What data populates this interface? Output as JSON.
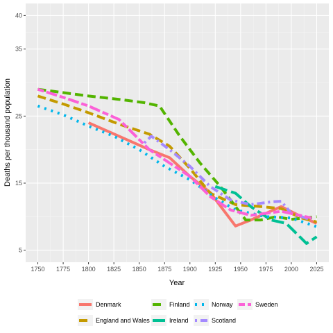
{
  "chart_data": {
    "type": "line",
    "title": "",
    "xlabel": "Year",
    "ylabel": "Deaths per thousand population",
    "xlim": [
      1738,
      2037
    ],
    "ylim": [
      3.2,
      41.8
    ],
    "x_ticks": [
      1750,
      1775,
      1800,
      1825,
      1850,
      1875,
      1900,
      1925,
      1950,
      1975,
      2000,
      2025
    ],
    "y_ticks": [
      5,
      15,
      25,
      35,
      40
    ],
    "grid": true,
    "legend_position": "bottom",
    "series": [
      {
        "name": "Denmark",
        "color": "#F8766D",
        "dash": "solid",
        "points": [
          [
            1800,
            24.0
          ],
          [
            1830,
            22.0
          ],
          [
            1860,
            20.0
          ],
          [
            1880,
            18.8
          ],
          [
            1900,
            16.0
          ],
          [
            1920,
            13.6
          ],
          [
            1945,
            8.6
          ],
          [
            1960,
            9.5
          ],
          [
            1990,
            11.5
          ],
          [
            2010,
            10.0
          ],
          [
            2025,
            9.0
          ]
        ]
      },
      {
        "name": "England and Wales",
        "color": "#C49A00",
        "dash": "dashed",
        "points": [
          [
            1750,
            28.0
          ],
          [
            1775,
            26.8
          ],
          [
            1800,
            25.5
          ],
          [
            1830,
            23.8
          ],
          [
            1860,
            22.3
          ],
          [
            1880,
            20.5
          ],
          [
            1900,
            17.2
          ],
          [
            1920,
            13.5
          ],
          [
            1945,
            11.8
          ],
          [
            1970,
            11.5
          ],
          [
            1990,
            11.2
          ],
          [
            2010,
            9.8
          ],
          [
            2025,
            9.2
          ]
        ]
      },
      {
        "name": "Finland",
        "color": "#53B400",
        "dash": "dashed",
        "points": [
          [
            1750,
            29.0
          ],
          [
            1775,
            28.5
          ],
          [
            1800,
            28.0
          ],
          [
            1830,
            27.5
          ],
          [
            1855,
            27.0
          ],
          [
            1870,
            26.5
          ],
          [
            1890,
            22.0
          ],
          [
            1910,
            18.0
          ],
          [
            1930,
            14.5
          ],
          [
            1945,
            11.5
          ],
          [
            1955,
            9.5
          ],
          [
            1970,
            9.5
          ],
          [
            1985,
            10.0
          ],
          [
            2000,
            9.6
          ],
          [
            2025,
            10.0
          ]
        ]
      },
      {
        "name": "Ireland",
        "color": "#00C094",
        "dash": "longdash",
        "points": [
          [
            1925,
            14.5
          ],
          [
            1945,
            13.5
          ],
          [
            1960,
            11.5
          ],
          [
            1980,
            9.5
          ],
          [
            1995,
            9.0
          ],
          [
            2005,
            7.5
          ],
          [
            2015,
            6.0
          ],
          [
            2025,
            7.0
          ]
        ]
      },
      {
        "name": "Norway",
        "color": "#00B6EB",
        "dash": "dotted",
        "points": [
          [
            1750,
            26.5
          ],
          [
            1775,
            25.2
          ],
          [
            1800,
            23.5
          ],
          [
            1825,
            22.0
          ],
          [
            1850,
            20.0
          ],
          [
            1875,
            17.5
          ],
          [
            1900,
            15.5
          ],
          [
            1925,
            12.8
          ],
          [
            1945,
            11.0
          ],
          [
            1975,
            10.0
          ],
          [
            2000,
            9.8
          ],
          [
            2025,
            8.5
          ]
        ]
      },
      {
        "name": "Scotland",
        "color": "#A58AFF",
        "dash": "dotdash",
        "points": [
          [
            1855,
            21.0
          ],
          [
            1862,
            22.0
          ],
          [
            1880,
            20.0
          ],
          [
            1900,
            17.5
          ],
          [
            1920,
            14.5
          ],
          [
            1940,
            12.5
          ],
          [
            1960,
            11.8
          ],
          [
            1980,
            12.2
          ],
          [
            1990,
            12.3
          ],
          [
            2000,
            10.5
          ],
          [
            2020,
            9.5
          ]
        ]
      },
      {
        "name": "Sweden",
        "color": "#FB61D7",
        "dash": "twodash",
        "points": [
          [
            1750,
            29.0
          ],
          [
            1775,
            27.8
          ],
          [
            1800,
            26.5
          ],
          [
            1830,
            24.5
          ],
          [
            1860,
            20.0
          ],
          [
            1880,
            18.0
          ],
          [
            1900,
            16.0
          ],
          [
            1920,
            13.0
          ],
          [
            1940,
            11.0
          ],
          [
            1960,
            10.2
          ],
          [
            1990,
            10.8
          ],
          [
            2020,
            9.8
          ]
        ]
      }
    ]
  }
}
